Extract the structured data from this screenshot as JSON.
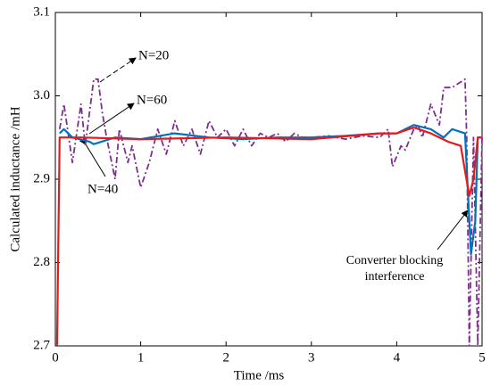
{
  "chart_data": {
    "type": "line",
    "xlabel": "Time /ms",
    "ylabel": "Calculated inductance /mH",
    "xlim": [
      0,
      5
    ],
    "xticks": [
      0,
      1,
      2,
      3,
      4,
      5
    ],
    "ylim": [
      2.7,
      3.1
    ],
    "yticks": [
      2.7,
      2.8,
      2.9,
      {
        "value": 3,
        "label": "3.0"
      },
      3.1
    ],
    "series": [
      {
        "name": "N=20",
        "color": "#7e2f8e",
        "dash": "dashdot",
        "x": [
          0.05,
          0.1,
          0.2,
          0.3,
          0.35,
          0.45,
          0.5,
          0.55,
          0.6,
          0.7,
          0.75,
          0.85,
          0.9,
          1.0,
          1.1,
          1.2,
          1.3,
          1.4,
          1.5,
          1.6,
          1.7,
          1.8,
          1.9,
          2.0,
          2.1,
          2.2,
          2.3,
          2.4,
          2.5,
          2.6,
          2.7,
          2.8,
          2.9,
          3.0,
          3.2,
          3.4,
          3.6,
          3.8,
          3.9,
          3.95,
          4.05,
          4.1,
          4.2,
          4.25,
          4.3,
          4.4,
          4.5,
          4.55,
          4.65,
          4.8,
          4.82,
          4.85,
          4.9,
          4.95,
          5.0
        ],
        "values": [
          2.96,
          2.99,
          2.92,
          2.99,
          2.94,
          3.02,
          3.02,
          2.98,
          2.95,
          2.9,
          2.96,
          2.92,
          2.94,
          2.89,
          2.92,
          2.96,
          2.93,
          2.97,
          2.94,
          2.96,
          2.93,
          2.97,
          2.95,
          2.96,
          2.94,
          2.96,
          2.94,
          2.955,
          2.95,
          2.955,
          2.945,
          2.955,
          2.95,
          2.95,
          2.952,
          2.948,
          2.952,
          2.95,
          2.96,
          2.915,
          2.94,
          2.935,
          2.96,
          2.965,
          2.95,
          2.99,
          2.965,
          3.01,
          3.01,
          3.02,
          2.95,
          2.7,
          2.95,
          2.7,
          2.95
        ]
      },
      {
        "name": "N=60",
        "color": "#0072bd",
        "dash": "solid",
        "x": [
          0.05,
          0.1,
          0.2,
          0.4,
          0.45,
          0.7,
          1.0,
          1.4,
          1.8,
          2.2,
          2.6,
          3.0,
          3.4,
          3.8,
          4.0,
          4.2,
          4.4,
          4.55,
          4.65,
          4.8,
          4.87,
          4.92,
          4.95,
          5.0
        ],
        "values": [
          2.955,
          2.96,
          2.95,
          2.945,
          2.942,
          2.95,
          2.948,
          2.955,
          2.95,
          2.948,
          2.95,
          2.95,
          2.952,
          2.955,
          2.955,
          2.965,
          2.96,
          2.95,
          2.96,
          2.955,
          2.81,
          2.85,
          2.95,
          2.95
        ]
      },
      {
        "name": "N=40",
        "color": "#e8191c",
        "dash": "solid",
        "x": [
          0.02,
          0.05,
          0.3,
          1.0,
          2.0,
          3.0,
          3.8,
          4.0,
          4.2,
          4.4,
          4.6,
          4.75,
          4.85,
          4.9,
          4.95,
          5.0
        ],
        "values": [
          2.7,
          2.95,
          2.95,
          2.948,
          2.95,
          2.948,
          2.955,
          2.955,
          2.962,
          2.955,
          2.945,
          2.94,
          2.88,
          2.9,
          2.95,
          2.95
        ]
      }
    ],
    "annotation": [
      "Converter blocking",
      "interference"
    ]
  }
}
